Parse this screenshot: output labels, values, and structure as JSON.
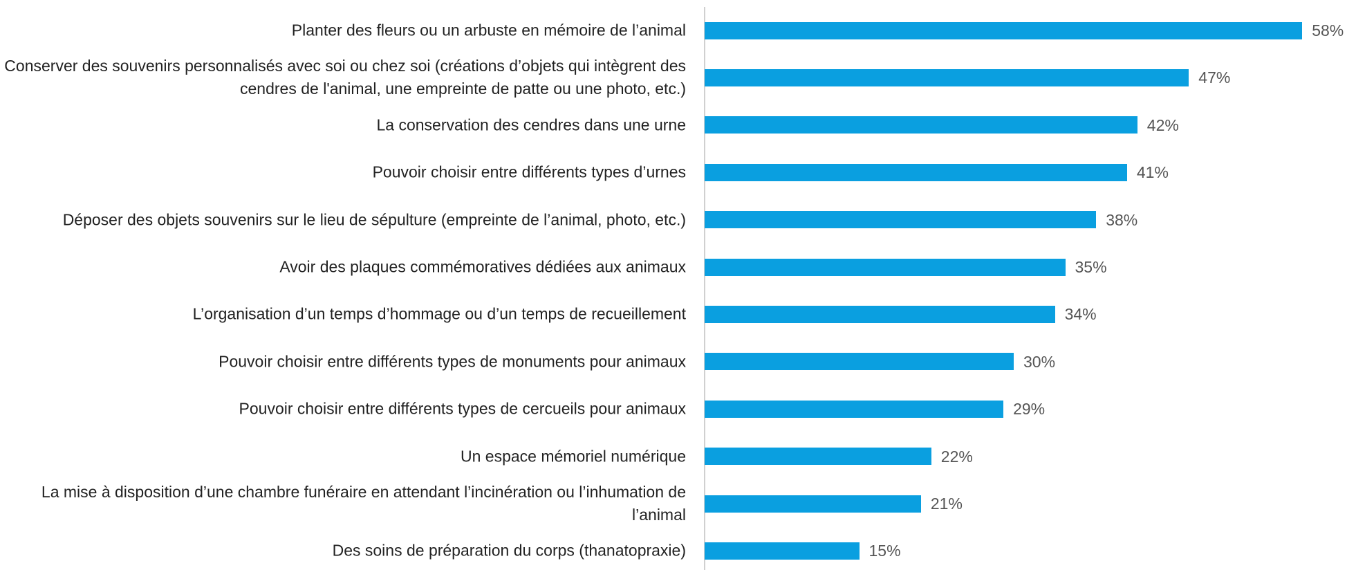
{
  "chart_data": {
    "type": "bar",
    "orientation": "horizontal",
    "categories": [
      "Planter des fleurs ou un arbuste en mémoire de l’animal",
      "Conserver des souvenirs personnalisés avec soi ou chez soi (créations d’objets qui intègrent des cendres de l'animal, une empreinte de patte ou une photo, etc.)",
      "La conservation des cendres dans une urne",
      "Pouvoir choisir entre différents types d’urnes",
      "Déposer des objets souvenirs sur le lieu de sépulture (empreinte de l’animal, photo, etc.)",
      "Avoir des plaques commémoratives dédiées aux animaux",
      "L’organisation d’un temps d’hommage ou d’un temps de recueillement",
      "Pouvoir choisir entre différents types de monuments pour animaux",
      "Pouvoir choisir entre différents types de cercueils pour animaux",
      "Un espace mémoriel numérique",
      "La mise à disposition d’une chambre funéraire en attendant l’incinération ou l’inhumation de l’animal",
      "Des soins de préparation du corps (thanatopraxie)"
    ],
    "values": [
      58,
      47,
      42,
      41,
      38,
      35,
      34,
      30,
      29,
      22,
      21,
      15
    ],
    "value_labels": [
      "58%",
      "47%",
      "42%",
      "41%",
      "38%",
      "35%",
      "34%",
      "30%",
      "29%",
      "22%",
      "21%",
      "15%"
    ],
    "color": "#0a9fe0"
  }
}
